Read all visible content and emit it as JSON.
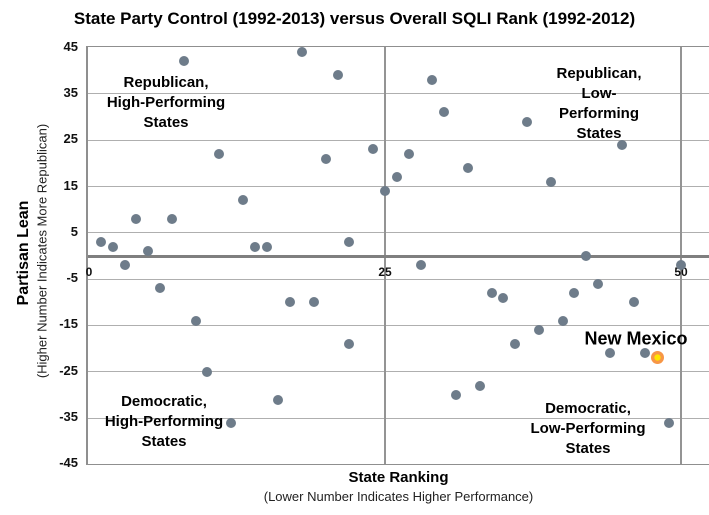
{
  "title": "State Party Control (1992-2013) versus Overall SQLI Rank (1992-2012)",
  "y_axis": {
    "title": "Partisan Lean",
    "subtitle": "(Higher Number Indicates More Republican)"
  },
  "x_axis": {
    "title": "State Ranking",
    "subtitle": "(Lower Number Indicates Higher Performance)"
  },
  "quadrants": {
    "top_left": "Republican,\nHigh-Performing\nStates",
    "top_right": "Republican,\nLow-Performing\nStates",
    "bottom_left": "Democratic,\nHigh-Performing\nStates",
    "bottom_right": "Democratic,\nLow-Performing\nStates"
  },
  "annotation_label": "New Mexico",
  "colors": {
    "state_dot": "#6E7C8A",
    "highlight_ring": "#F79646",
    "highlight_center": "#FFE600",
    "h_gridline": "#AFAFAF",
    "v_gridline": "#949494",
    "zero_line": "#7F7F7F",
    "plot_border": "#8F8F8F"
  },
  "chart_data": {
    "type": "scatter",
    "title": "State Party Control (1992-2013) versus Overall SQLI Rank (1992-2012)",
    "xlabel": "State Ranking (Lower Number Indicates Higher Performance)",
    "ylabel": "Partisan Lean (Higher Number Indicates More Republican)",
    "xlim": [
      0,
      52.5
    ],
    "ylim": [
      -45,
      45
    ],
    "x_ticks": [
      0,
      25,
      50
    ],
    "y_ticks": [
      45,
      35,
      25,
      15,
      5,
      -5,
      -15,
      -25,
      -35,
      -45
    ],
    "h_gridlines": [
      35,
      25,
      15,
      5,
      -5,
      -15,
      -25,
      -35
    ],
    "v_gridlines": [
      25,
      50
    ],
    "zero_line_y": 0,
    "grid": true,
    "legend": "none",
    "series": [
      {
        "name": "States",
        "marker": "circle",
        "size": 10,
        "color": "#6E7C8A",
        "points": [
          [
            1,
            3
          ],
          [
            2,
            2
          ],
          [
            3,
            -2
          ],
          [
            4,
            8
          ],
          [
            5,
            1
          ],
          [
            6,
            -7
          ],
          [
            7,
            8
          ],
          [
            8,
            42
          ],
          [
            9,
            -14
          ],
          [
            10,
            -25
          ],
          [
            11,
            22
          ],
          [
            12,
            -36
          ],
          [
            13,
            12
          ],
          [
            14,
            2
          ],
          [
            15,
            2
          ],
          [
            16,
            -31
          ],
          [
            17,
            -10
          ],
          [
            18,
            44
          ],
          [
            19,
            -10
          ],
          [
            20,
            21
          ],
          [
            21,
            39
          ],
          [
            22,
            3
          ],
          [
            22,
            -19
          ],
          [
            24,
            23
          ],
          [
            25,
            14
          ],
          [
            26,
            17
          ],
          [
            27,
            22
          ],
          [
            28,
            -2
          ],
          [
            29,
            38
          ],
          [
            30,
            31
          ],
          [
            31,
            -30
          ],
          [
            32,
            19
          ],
          [
            33,
            -28
          ],
          [
            34,
            -8
          ],
          [
            35,
            -9
          ],
          [
            36,
            -19
          ],
          [
            37,
            29
          ],
          [
            38,
            -16
          ],
          [
            39,
            16
          ],
          [
            40,
            -14
          ],
          [
            41,
            -8
          ],
          [
            42,
            0
          ],
          [
            43,
            -6
          ],
          [
            44,
            -21
          ],
          [
            45,
            24
          ],
          [
            46,
            -10
          ],
          [
            47,
            -21
          ],
          [
            49,
            -36
          ],
          [
            50,
            -2
          ]
        ]
      },
      {
        "name": "New Mexico",
        "marker": "ring",
        "size": 13,
        "color": "#F79646",
        "center_color": "#FFE600",
        "points": [
          [
            48,
            -22
          ]
        ]
      }
    ]
  }
}
